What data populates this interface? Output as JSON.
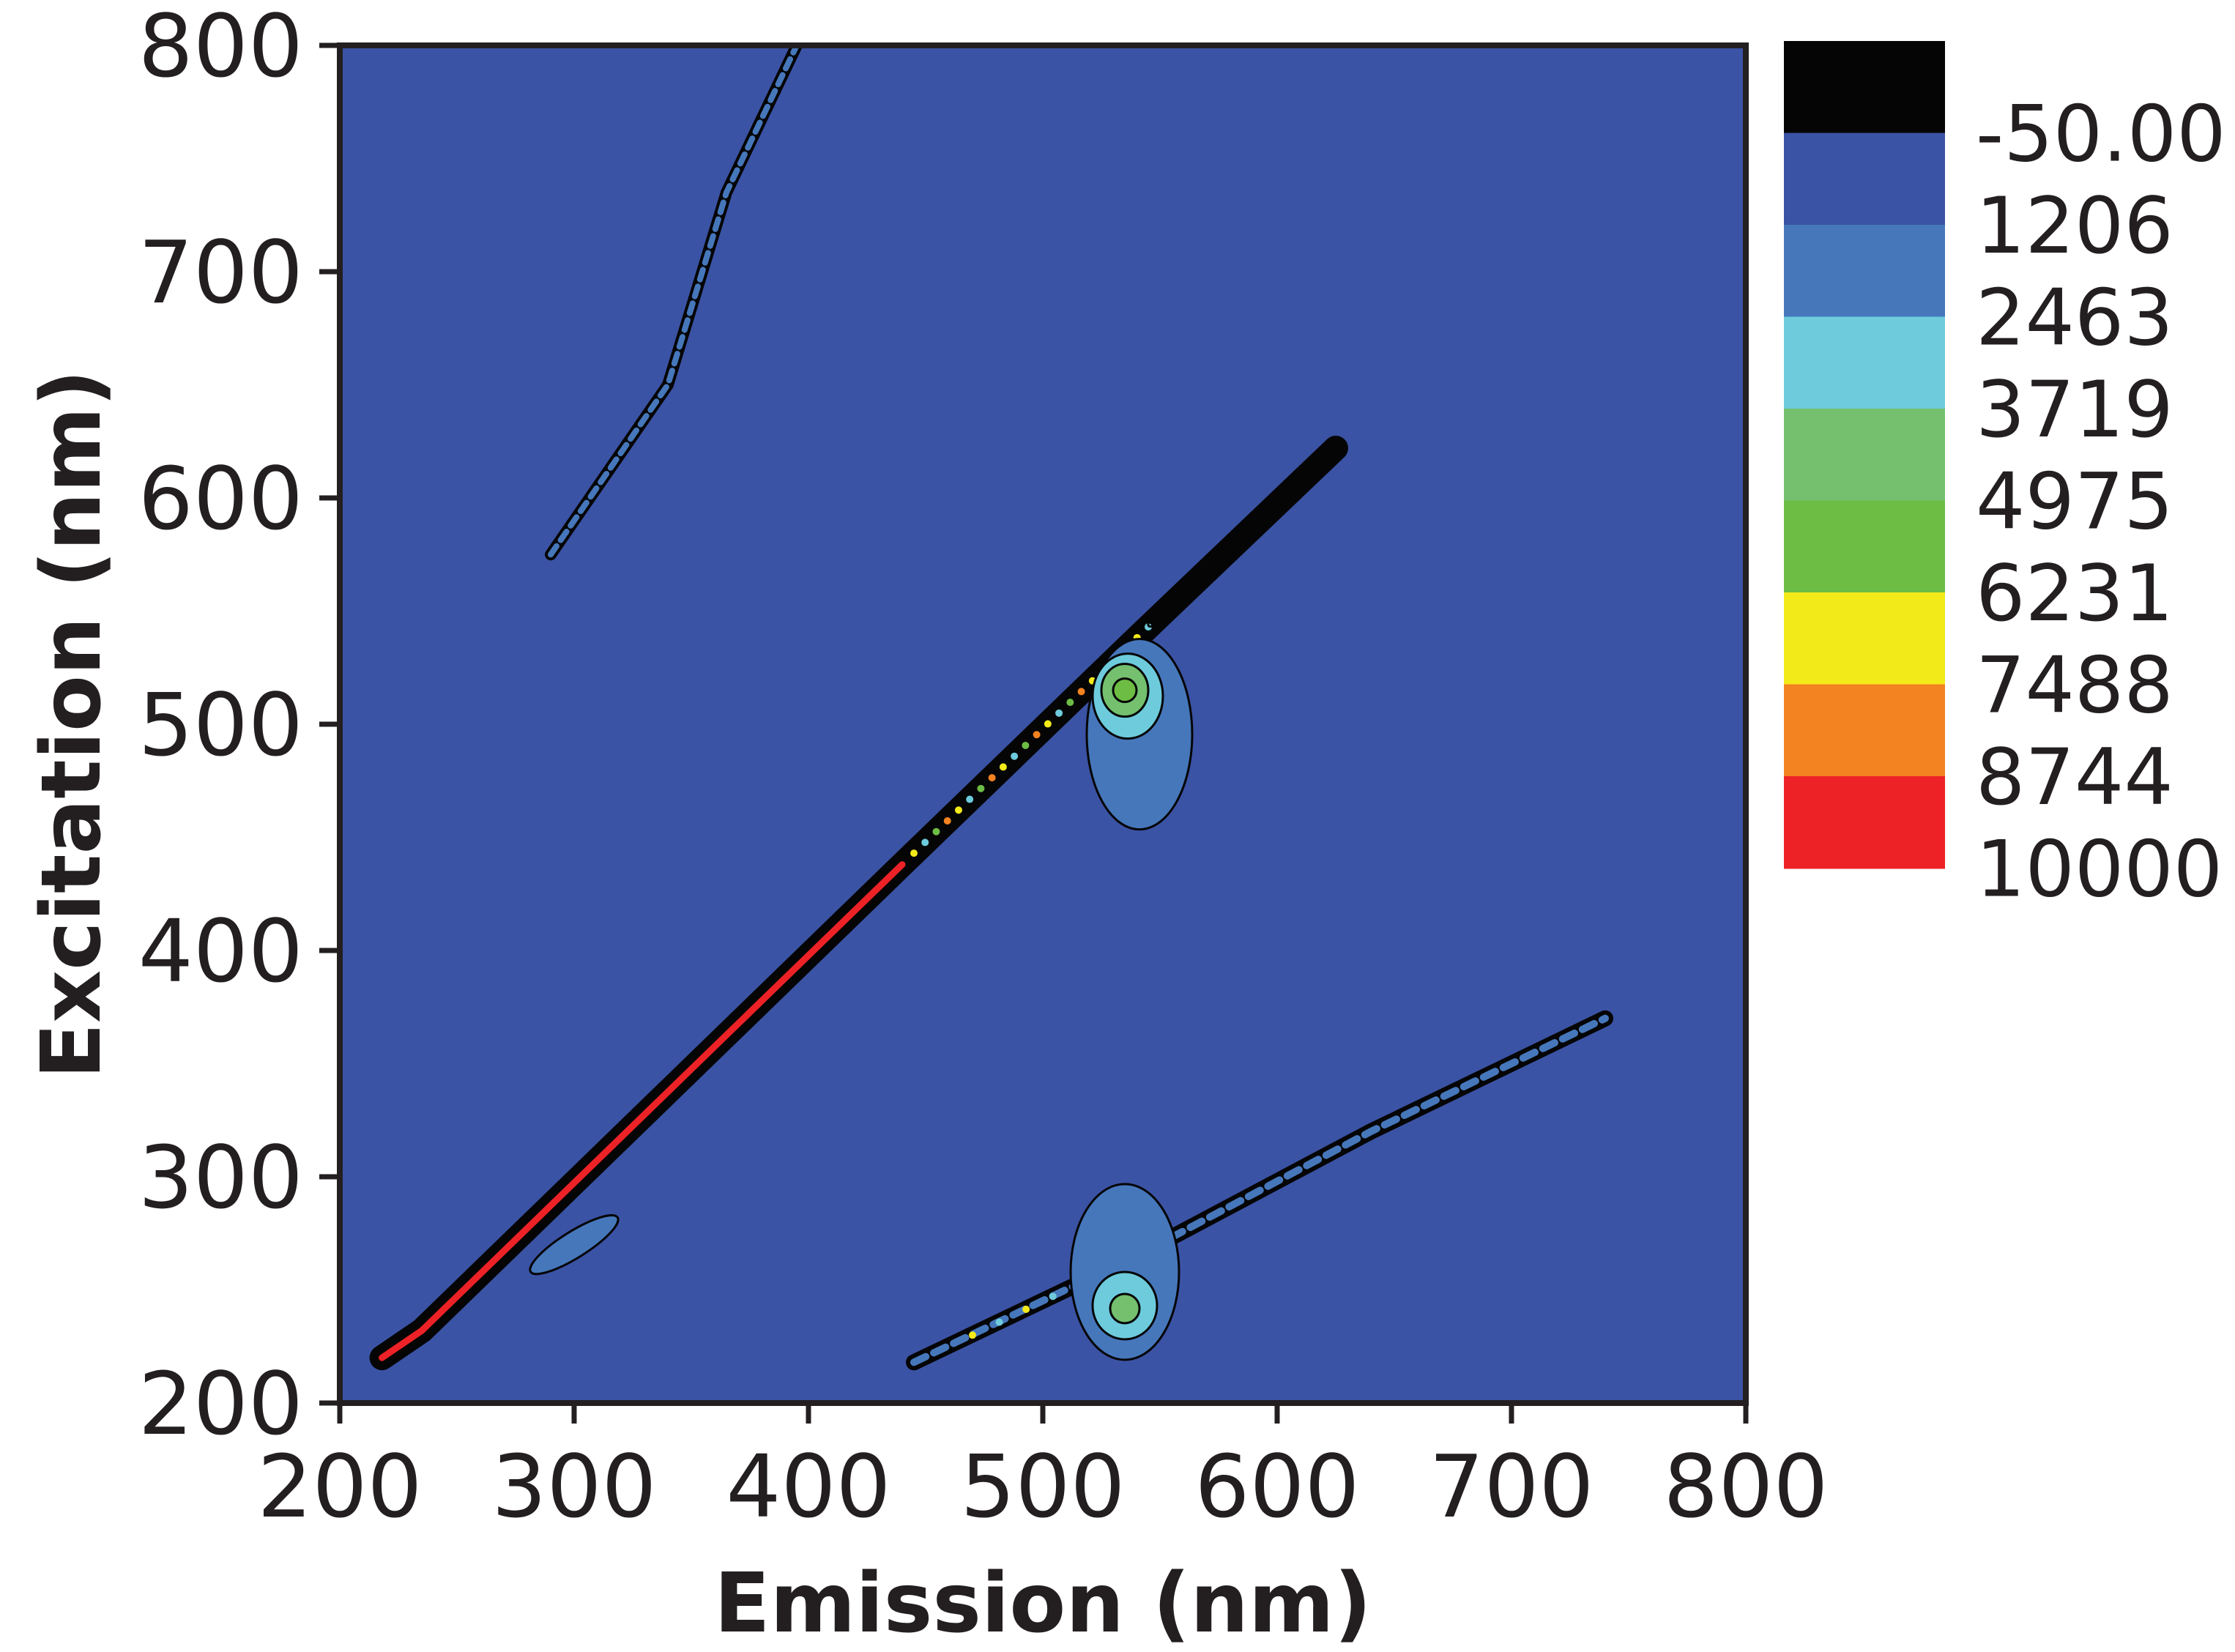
{
  "chart_data": {
    "type": "heatmap",
    "title": "",
    "xlabel": "Emission (nm)",
    "ylabel": "Excitation (nm)",
    "xlim": [
      200,
      800
    ],
    "ylim": [
      200,
      800
    ],
    "xticks": [
      200,
      300,
      400,
      500,
      600,
      700,
      800
    ],
    "yticks": [
      200,
      300,
      400,
      500,
      600,
      700,
      800
    ],
    "tick_labels": {
      "x": [
        "200",
        "300",
        "400",
        "500",
        "600",
        "700",
        "800"
      ],
      "y": [
        "200",
        "300",
        "400",
        "500",
        "600",
        "700",
        "800"
      ]
    },
    "background_color": "#3b53a4",
    "legend": {
      "placement": "right",
      "levels": [
        "-50.00",
        "1206",
        "2463",
        "3719",
        "4975",
        "6231",
        "7488",
        "8744",
        "10000"
      ],
      "colors": [
        "#050505",
        "#3b53a4",
        "#4677bb",
        "#6ecbdc",
        "#74c06e",
        "#6dbd45",
        "#f3ea1a",
        "#f38220",
        "#ed2227"
      ]
    },
    "features": [
      {
        "kind": "rayleigh-1st-order",
        "color": "#ed2227",
        "points": [
          [
            218,
            220
          ],
          [
            235,
            232
          ],
          [
            440,
            438
          ],
          [
            540,
            538
          ],
          [
            625,
            622
          ]
        ]
      },
      {
        "kind": "rayleigh-2nd-order",
        "color": "#4677bb",
        "points": [
          [
            290,
            575
          ],
          [
            340,
            650
          ],
          [
            365,
            735
          ],
          [
            395,
            800
          ]
        ]
      },
      {
        "kind": "rayleigh-weak",
        "color": "#4677bb",
        "points": [
          [
            445,
            218
          ],
          [
            540,
            265
          ],
          [
            640,
            320
          ],
          [
            740,
            370
          ]
        ]
      },
      {
        "kind": "peak",
        "color": "#74c06e",
        "center": [
          535,
          515
        ],
        "intensity": 4975
      },
      {
        "kind": "peak",
        "color": "#6ecbdc",
        "center": [
          535,
          245
        ],
        "intensity": 3719
      },
      {
        "kind": "peak",
        "color": "#4677bb",
        "center": [
          300,
          270
        ],
        "intensity": 1206
      }
    ]
  }
}
